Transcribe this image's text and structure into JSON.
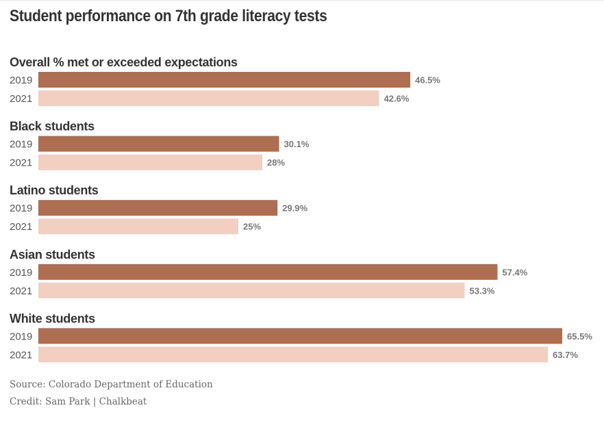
{
  "title": "Student performance on 7th grade literacy tests",
  "footer": {
    "source": "Source: Colorado Department of Education",
    "credit": "Credit: Sam Park | Chalkbeat"
  },
  "colors": {
    "series_2019": "#ad6e52",
    "series_2021": "#f2cfc0"
  },
  "chart_data": {
    "type": "bar",
    "orientation": "horizontal",
    "title": "Student performance on 7th grade literacy tests",
    "categories": [
      "Overall % met or exceeded expectations",
      "Black students",
      "Latino students",
      "Asian students",
      "White students"
    ],
    "series": [
      {
        "name": "2019",
        "values": [
          46.5,
          30.1,
          29.9,
          57.4,
          65.5
        ],
        "labels": [
          "46.5%",
          "30.1%",
          "29.9%",
          "57.4%",
          "65.5%"
        ]
      },
      {
        "name": "2021",
        "values": [
          42.6,
          28,
          25,
          53.3,
          63.7
        ],
        "labels": [
          "42.6%",
          "28%",
          "25%",
          "53.3%",
          "63.7%"
        ]
      }
    ],
    "unit": "%",
    "grid": false,
    "legend": "none"
  }
}
